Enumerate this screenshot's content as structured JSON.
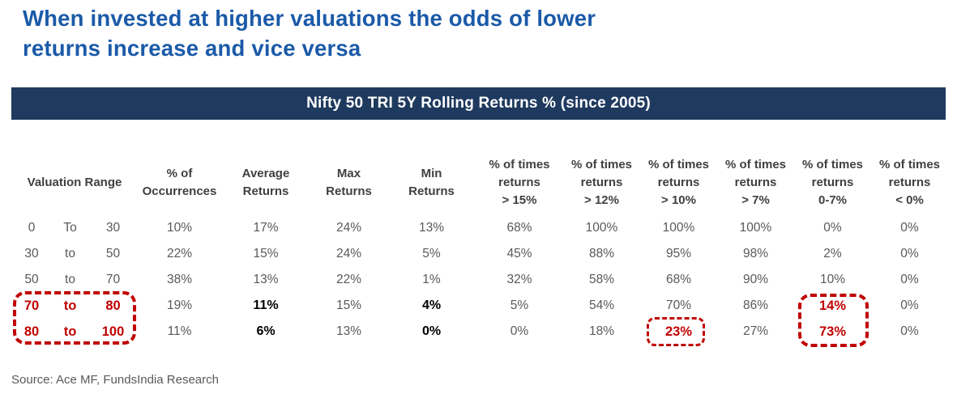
{
  "title": {
    "lines": [
      "When invested at higher valuations the odds of lower",
      "returns increase and vice versa"
    ]
  },
  "banner": {
    "label": "Nifty 50 TRI 5Y Rolling Returns % (since 2005)"
  },
  "chart_data": {
    "type": "table",
    "title": "Nifty 50 TRI 5Y Rolling Returns % (since 2005)",
    "headers": [
      {
        "lines": [
          "Valuation Range"
        ],
        "span": 3
      },
      {
        "lines": [
          "% of",
          "Occurrences"
        ]
      },
      {
        "lines": [
          "Average",
          "Returns"
        ]
      },
      {
        "lines": [
          "Max",
          "Returns"
        ]
      },
      {
        "lines": [
          "Min",
          "Returns"
        ]
      },
      {
        "lines": [
          "% of times",
          "returns",
          "> 15%"
        ]
      },
      {
        "lines": [
          "% of times",
          "returns",
          "> 12%"
        ]
      },
      {
        "lines": [
          "% of times",
          "returns",
          "> 10%"
        ]
      },
      {
        "lines": [
          "% of times",
          "returns",
          "> 7%"
        ]
      },
      {
        "lines": [
          "% of times",
          "returns",
          "0-7%"
        ]
      },
      {
        "lines": [
          "% of times",
          "returns",
          "< 0%"
        ]
      }
    ],
    "rows": [
      {
        "cells": [
          "0",
          "To",
          "30",
          "10%",
          "17%",
          "24%",
          "13%",
          "68%",
          "100%",
          "100%",
          "100%",
          "0%",
          "0%"
        ],
        "styles": {}
      },
      {
        "cells": [
          "30",
          "to",
          "50",
          "22%",
          "15%",
          "24%",
          "5%",
          "45%",
          "88%",
          "95%",
          "98%",
          "2%",
          "0%"
        ],
        "styles": {}
      },
      {
        "cells": [
          "50",
          "to",
          "70",
          "38%",
          "13%",
          "22%",
          "1%",
          "32%",
          "58%",
          "68%",
          "90%",
          "10%",
          "0%"
        ],
        "styles": {}
      },
      {
        "cells": [
          "70",
          "to",
          "80",
          "19%",
          "11%",
          "15%",
          "4%",
          "5%",
          "54%",
          "70%",
          "86%",
          "14%",
          "0%"
        ],
        "styles": {
          "0": "red",
          "1": "red",
          "2": "red",
          "4": "black",
          "6": "black",
          "11": "red"
        }
      },
      {
        "cells": [
          "80",
          "to",
          "100",
          "11%",
          "6%",
          "13%",
          "0%",
          "0%",
          "18%",
          "23%",
          "27%",
          "73%",
          "0%"
        ],
        "styles": {
          "0": "red",
          "1": "red",
          "2": "red",
          "4": "black",
          "6": "black",
          "9": "red",
          "11": "red"
        }
      }
    ],
    "highlights": [
      {
        "name": "valuation-range-70-to-100",
        "note": "red dashed box around valuation ranges 70 to 80 and 80 to 100"
      },
      {
        "name": "returns-gt10-23pct",
        "note": "red dashed box around 23% in '% of times returns > 10%' for range 80 to 100"
      },
      {
        "name": "returns-0-7-14-73pct",
        "note": "red dashed box around 14% and 73% in '% of times returns 0-7%'"
      }
    ]
  },
  "source": {
    "label": "Source: Ace MF, FundsIndia Research"
  },
  "colors": {
    "title_blue": "#1b5aa8",
    "banner_navy": "#1f3a5f",
    "accent_red": "#c00000",
    "text_gray": "#595959",
    "header_gray": "#404040"
  }
}
